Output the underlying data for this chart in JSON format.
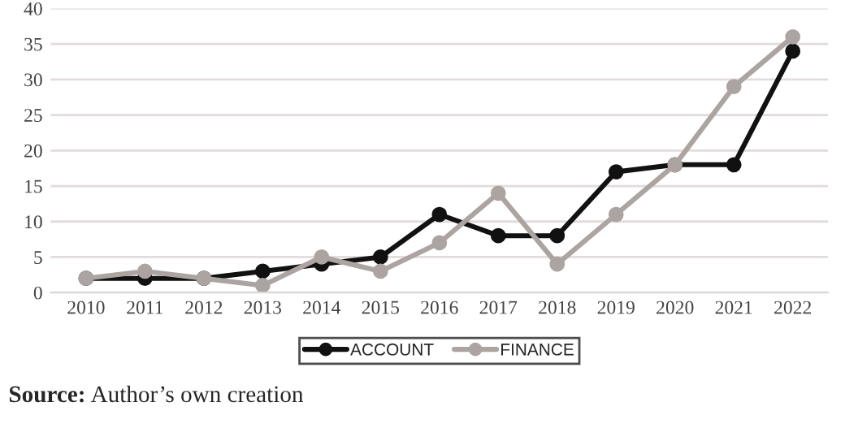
{
  "chart_data": {
    "type": "line",
    "categories": [
      "2010",
      "2011",
      "2012",
      "2013",
      "2014",
      "2015",
      "2016",
      "2017",
      "2018",
      "2019",
      "2020",
      "2021",
      "2022"
    ],
    "series": [
      {
        "name": "ACCOUNT",
        "color": "#111111",
        "values": [
          2,
          2,
          2,
          3,
          4,
          5,
          11,
          8,
          8,
          17,
          18,
          18,
          34
        ]
      },
      {
        "name": "FINANCE",
        "color": "#aca4a1",
        "values": [
          2,
          3,
          2,
          1,
          5,
          3,
          7,
          14,
          4,
          11,
          18,
          29,
          36
        ]
      }
    ],
    "ylim": [
      0,
      40
    ],
    "yticks": [
      0,
      5,
      10,
      15,
      20,
      25,
      30,
      35,
      40
    ],
    "grid": "y",
    "legend": "bottom",
    "marker": "circle",
    "line_style": "solid",
    "annotations": [
      "Source: Author’s own creation"
    ]
  }
}
